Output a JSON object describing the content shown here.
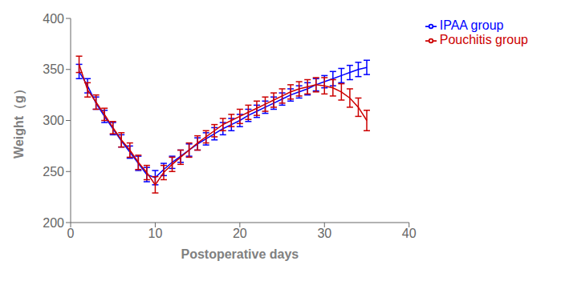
{
  "chart_data": {
    "type": "line",
    "xlabel": "Postoperative days",
    "ylabel": "Weight（g）",
    "x": [
      1,
      2,
      3,
      4,
      5,
      6,
      7,
      8,
      9,
      10,
      11,
      12,
      13,
      14,
      15,
      16,
      17,
      18,
      19,
      20,
      21,
      22,
      23,
      24,
      25,
      26,
      27,
      28,
      29,
      30,
      31,
      32,
      33,
      34,
      35
    ],
    "series": [
      {
        "name": "IPAA group",
        "color": "#0000FF",
        "values": [
          348,
          334,
          317,
          304,
          292,
          280,
          269,
          258,
          247,
          244,
          252,
          259,
          265,
          271,
          277,
          282,
          287,
          292,
          296,
          300,
          305,
          309,
          313,
          317,
          321,
          325,
          328,
          331,
          335,
          338,
          341,
          344,
          347,
          350,
          352
        ],
        "errors": [
          7,
          7,
          6,
          6,
          6,
          6,
          6,
          7,
          7,
          7,
          6,
          6,
          6,
          6,
          6,
          6,
          6,
          6,
          6,
          6,
          6,
          6,
          6,
          6,
          6,
          6,
          6,
          6,
          6,
          6,
          7,
          7,
          7,
          7,
          7
        ]
      },
      {
        "name": "Pouchitis group",
        "color": "#CC0000",
        "values": [
          355,
          330,
          318,
          306,
          293,
          281,
          271,
          259,
          249,
          237,
          249,
          257,
          264,
          271,
          278,
          284,
          290,
          296,
          300,
          304,
          308,
          312,
          316,
          320,
          324,
          328,
          331,
          333,
          335,
          334,
          332,
          328,
          322,
          313,
          300
        ],
        "errors": [
          8,
          7,
          7,
          6,
          6,
          7,
          7,
          7,
          7,
          8,
          7,
          7,
          7,
          7,
          7,
          6,
          6,
          6,
          6,
          7,
          7,
          7,
          7,
          7,
          7,
          7,
          7,
          7,
          7,
          8,
          8,
          8,
          9,
          9,
          10
        ]
      }
    ],
    "xlim": [
      0,
      40
    ],
    "ylim": [
      200,
      400
    ],
    "xticks": [
      0,
      10,
      20,
      30,
      40
    ],
    "yticks": [
      200,
      250,
      300,
      350,
      400
    ],
    "grid": false,
    "legend": "right"
  }
}
